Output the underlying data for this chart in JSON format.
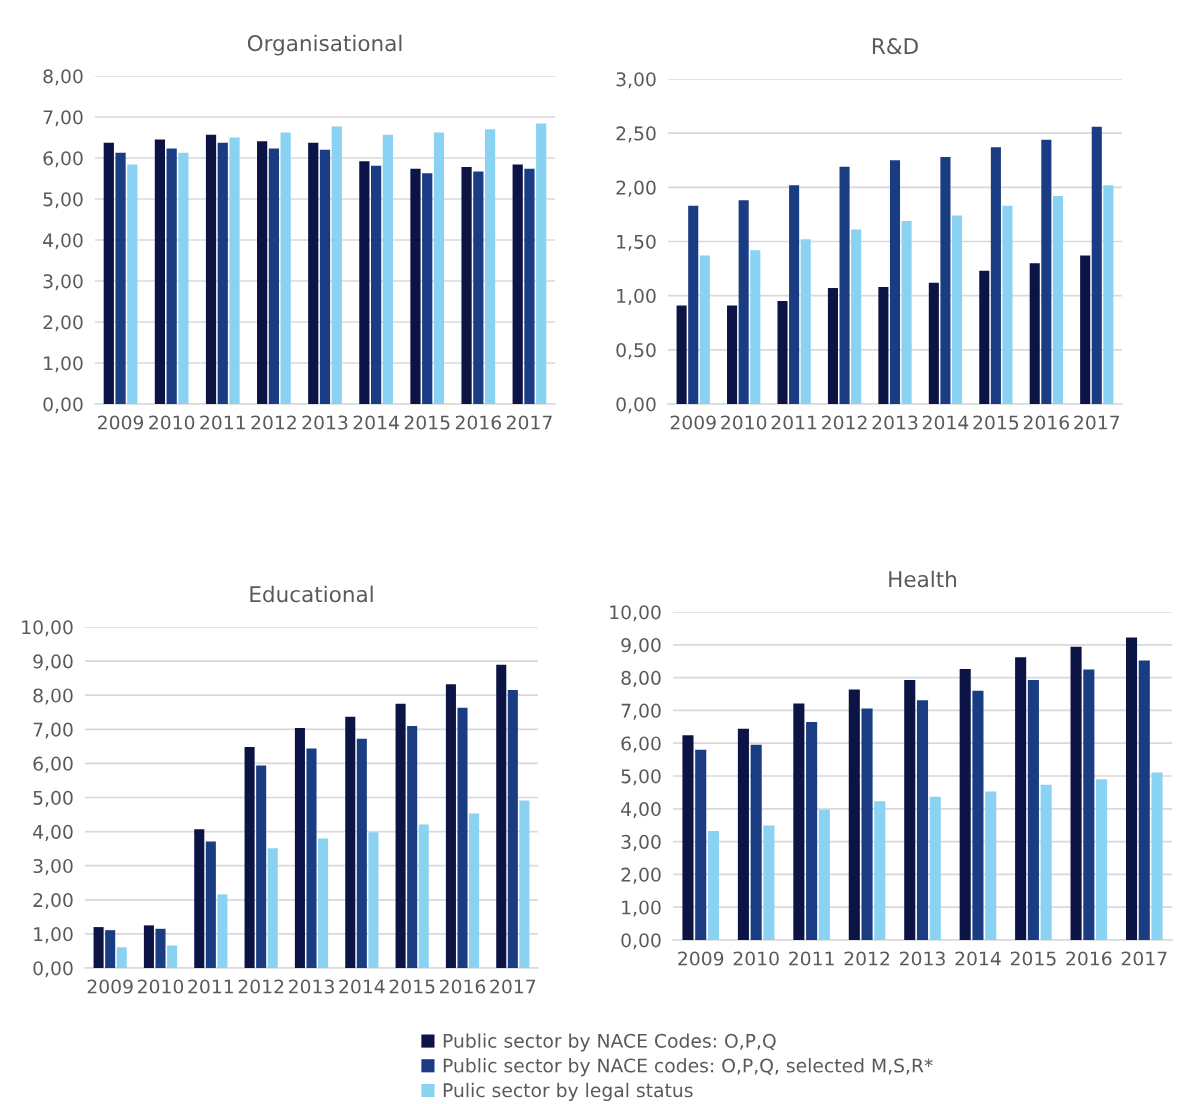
{
  "chart_data": [
    {
      "type": "bar",
      "title": "Organisational",
      "categories": [
        "2009",
        "2010",
        "2011",
        "2012",
        "2013",
        "2014",
        "2015",
        "2016",
        "2017"
      ],
      "ylim": [
        0,
        8
      ],
      "yticks": [
        {
          "value": 0,
          "label": "0,00"
        },
        {
          "value": 1,
          "label": "1,00"
        },
        {
          "value": 2,
          "label": "2,00"
        },
        {
          "value": 3,
          "label": "3,00"
        },
        {
          "value": 4,
          "label": "4,00"
        },
        {
          "value": 5,
          "label": "5,00"
        },
        {
          "value": 6,
          "label": "6,00"
        },
        {
          "value": 7,
          "label": "7,00"
        },
        {
          "value": 8,
          "label": "8,00"
        }
      ],
      "grid": "y",
      "legend": "bottom",
      "series": [
        {
          "name": "Public sector by NACE Codes: O,P,Q",
          "color": "#0c1446",
          "values": [
            6.37,
            6.45,
            6.57,
            6.41,
            6.37,
            5.92,
            5.74,
            5.78,
            5.84
          ]
        },
        {
          "name": "Public sector by NACE codes: O,P,Q, selected M,S,R*",
          "color": "#1a3c82",
          "values": [
            6.13,
            6.23,
            6.37,
            6.23,
            6.2,
            5.81,
            5.63,
            5.67,
            5.74
          ]
        },
        {
          "name": "Pulic sector by legal status",
          "color": "#8ad2f2",
          "values": [
            5.84,
            6.13,
            6.5,
            6.62,
            6.77,
            6.57,
            6.62,
            6.7,
            6.84
          ]
        }
      ]
    },
    {
      "type": "bar",
      "title": "R&D",
      "categories": [
        "2009",
        "2010",
        "2011",
        "2012",
        "2013",
        "2014",
        "2015",
        "2016",
        "2017"
      ],
      "ylim": [
        0,
        3
      ],
      "yticks": [
        {
          "value": 0,
          "label": "0,00"
        },
        {
          "value": 0.5,
          "label": "0,50"
        },
        {
          "value": 1,
          "label": "1,00"
        },
        {
          "value": 1.5,
          "label": "1,50"
        },
        {
          "value": 2,
          "label": "2,00"
        },
        {
          "value": 2.5,
          "label": "2,50"
        },
        {
          "value": 3,
          "label": "3,00"
        }
      ],
      "grid": "y",
      "series": [
        {
          "color": "#0c1446",
          "values": [
            0.91,
            0.91,
            0.95,
            1.07,
            1.08,
            1.12,
            1.23,
            1.3,
            1.37
          ]
        },
        {
          "color": "#1a3c82",
          "values": [
            1.83,
            1.88,
            2.02,
            2.19,
            2.25,
            2.28,
            2.37,
            2.44,
            2.56
          ]
        },
        {
          "color": "#8ad2f2",
          "values": [
            1.37,
            1.42,
            1.52,
            1.61,
            1.69,
            1.74,
            1.83,
            1.92,
            2.02
          ]
        }
      ]
    },
    {
      "type": "bar",
      "title": "Educational",
      "categories": [
        "2009",
        "2010",
        "2011",
        "2012",
        "2013",
        "2014",
        "2015",
        "2016",
        "2017"
      ],
      "ylim": [
        0,
        10
      ],
      "yticks": [
        {
          "value": 0,
          "label": "0,00"
        },
        {
          "value": 1,
          "label": "1,00"
        },
        {
          "value": 2,
          "label": "2,00"
        },
        {
          "value": 3,
          "label": "3,00"
        },
        {
          "value": 4,
          "label": "4,00"
        },
        {
          "value": 5,
          "label": "5,00"
        },
        {
          "value": 6,
          "label": "6,00"
        },
        {
          "value": 7,
          "label": "7,00"
        },
        {
          "value": 8,
          "label": "8,00"
        },
        {
          "value": 9,
          "label": "9,00"
        },
        {
          "value": 10,
          "label": "10,00"
        }
      ],
      "grid": "y",
      "series": [
        {
          "color": "#0c1446",
          "values": [
            1.2,
            1.25,
            4.07,
            6.48,
            7.04,
            7.37,
            7.75,
            8.32,
            8.89
          ]
        },
        {
          "color": "#1a3c82",
          "values": [
            1.11,
            1.15,
            3.71,
            5.94,
            6.44,
            6.72,
            7.1,
            7.63,
            8.15
          ]
        },
        {
          "color": "#8ad2f2",
          "values": [
            0.61,
            0.66,
            2.16,
            3.51,
            3.8,
            3.98,
            4.21,
            4.53,
            4.91
          ]
        }
      ]
    },
    {
      "type": "bar",
      "title": "Health",
      "categories": [
        "2009",
        "2010",
        "2011",
        "2012",
        "2013",
        "2014",
        "2015",
        "2016",
        "2017"
      ],
      "ylim": [
        0,
        10
      ],
      "yticks": [
        {
          "value": 0,
          "label": "0,00"
        },
        {
          "value": 1,
          "label": "1,00"
        },
        {
          "value": 2,
          "label": "2,00"
        },
        {
          "value": 3,
          "label": "3,00"
        },
        {
          "value": 4,
          "label": "4,00"
        },
        {
          "value": 5,
          "label": "5,00"
        },
        {
          "value": 6,
          "label": "6,00"
        },
        {
          "value": 7,
          "label": "7,00"
        },
        {
          "value": 8,
          "label": "8,00"
        },
        {
          "value": 9,
          "label": "9,00"
        },
        {
          "value": 10,
          "label": "10,00"
        }
      ],
      "grid": "y",
      "series": [
        {
          "color": "#0c1446",
          "values": [
            6.24,
            6.44,
            7.21,
            7.64,
            7.93,
            8.26,
            8.62,
            8.94,
            9.22
          ]
        },
        {
          "color": "#1a3c82",
          "values": [
            5.8,
            5.95,
            6.65,
            7.06,
            7.31,
            7.6,
            7.93,
            8.25,
            8.52
          ]
        },
        {
          "color": "#8ad2f2",
          "values": [
            3.32,
            3.49,
            3.97,
            4.23,
            4.37,
            4.53,
            4.73,
            4.9,
            5.11
          ]
        }
      ]
    }
  ]
}
